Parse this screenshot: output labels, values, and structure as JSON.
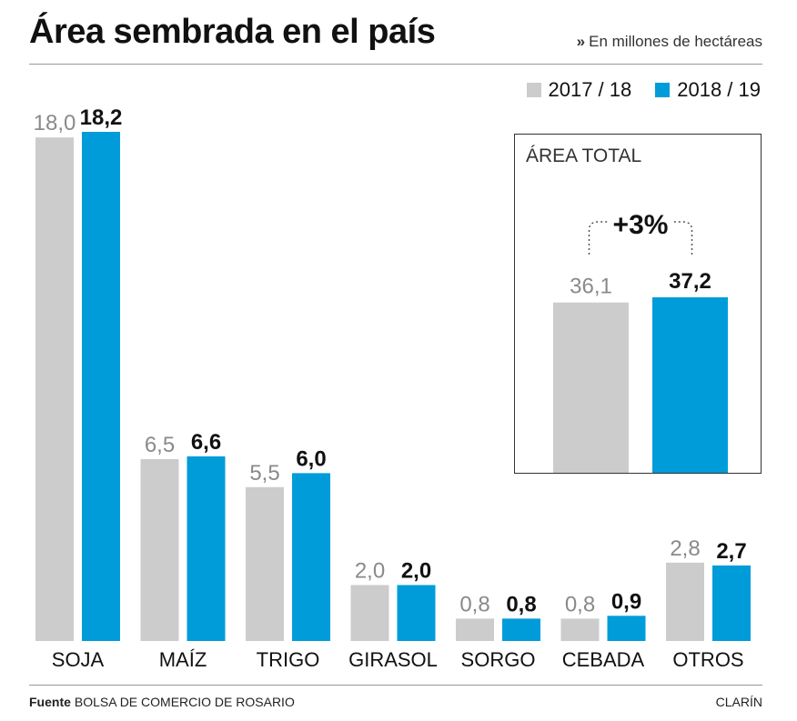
{
  "title": "Área sembrada en el país",
  "subtitle": "En millones de hectáreas",
  "subtitle_marker": "»",
  "colors": {
    "prev": "#cccccc",
    "curr": "#009cd9",
    "prev_label": "#8a8a8a",
    "curr_label": "#111111"
  },
  "chart_data": [
    {
      "type": "bar",
      "categories": [
        "SOJA",
        "MAÍZ",
        "TRIGO",
        "GIRASOL",
        "SORGO",
        "CEBADA",
        "OTROS"
      ],
      "series": [
        {
          "name": "2017 / 18",
          "values": [
            18.0,
            6.5,
            5.5,
            2.0,
            0.8,
            0.8,
            2.8
          ],
          "labels": [
            "18,0",
            "6,5",
            "5,5",
            "2,0",
            "0,8",
            "0,8",
            "2,8"
          ]
        },
        {
          "name": "2018 / 19",
          "values": [
            18.2,
            6.6,
            6.0,
            2.0,
            0.8,
            0.9,
            2.7
          ],
          "labels": [
            "18,2",
            "6,6",
            "6,0",
            "2,0",
            "0,8",
            "0,9",
            "2,7"
          ]
        }
      ],
      "ylim": [
        0,
        20
      ],
      "legend": "top-right",
      "grid": false
    },
    {
      "type": "bar",
      "title": "ÁREA TOTAL",
      "categories": [
        "2017 / 18",
        "2018 / 19"
      ],
      "values": [
        36.1,
        37.2
      ],
      "labels": [
        "36,1",
        "37,2"
      ],
      "annotation": "+3%",
      "ylim": [
        0,
        40
      ]
    }
  ],
  "source_label": "Fuente",
  "source": "BOLSA DE COMERCIO DE ROSARIO",
  "credit": "CLARÍN"
}
